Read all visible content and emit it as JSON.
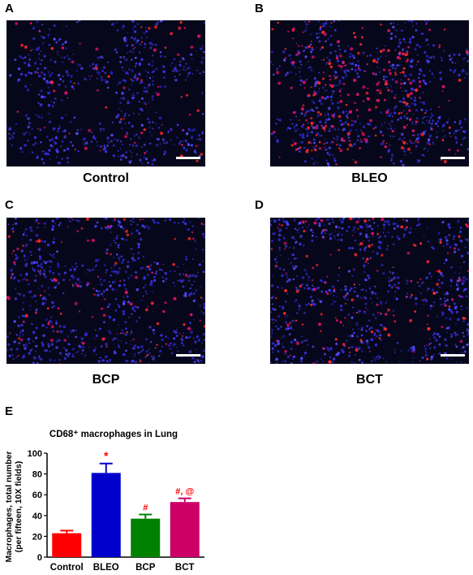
{
  "panels": [
    {
      "letter": "A",
      "caption": "Control",
      "density": 70,
      "seed": 11
    },
    {
      "letter": "B",
      "caption": "BLEO",
      "density": 260,
      "seed": 23
    },
    {
      "letter": "C",
      "caption": "BCP",
      "density": 110,
      "seed": 37
    },
    {
      "letter": "D",
      "caption": "BCT",
      "density": 150,
      "seed": 51
    }
  ],
  "panel_e_letter": "E",
  "chart_data": {
    "type": "bar",
    "title": "CD68⁺ macrophages in Lung",
    "ylabel_line1": "Macrophages, total number",
    "ylabel_line2": "(per fifteen, 10X fields)",
    "categories": [
      "Control",
      "BLEO",
      "BCP",
      "BCT"
    ],
    "values": [
      23,
      81,
      37,
      53
    ],
    "errors": [
      2.5,
      9,
      4,
      3.5
    ],
    "colors": [
      "#ff0000",
      "#0000cc",
      "#008000",
      "#cc0066"
    ],
    "annotations": [
      "",
      "*",
      "#",
      "#, @"
    ],
    "annotation_color": "#ff0000",
    "ylim": [
      0,
      100
    ],
    "yticks": [
      0,
      20,
      40,
      60,
      80,
      100
    ]
  }
}
